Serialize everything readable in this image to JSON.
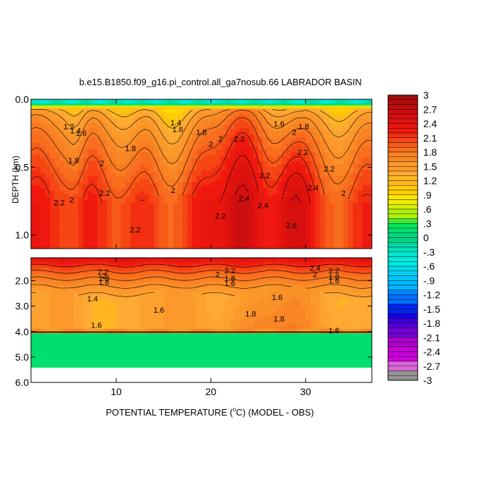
{
  "chart_data": {
    "type": "heatmap",
    "title": "b.e15.B1850.f09_g16.pi_control.all_ga7nosub.66 LABRADOR BASIN",
    "xlabel_prefix": "POTENTIAL TEMPERATURE (",
    "xlabel_degree": "o",
    "xlabel_suffix": "C) (MODEL - OBS)",
    "ylabel": "DEPTH (km)",
    "xlim": [
      1,
      37
    ],
    "x_ticks": [
      10,
      20,
      30
    ],
    "x_tick_labels": [
      "10",
      "20",
      "30"
    ],
    "upper_panel": {
      "ylim": [
        0.0,
        1.1
      ],
      "y_ticks": [
        0.0,
        0.5,
        1.0
      ],
      "y_tick_labels": [
        "0.0",
        "0.5",
        "1.0"
      ]
    },
    "lower_panel": {
      "ylim": [
        1.1,
        6.0
      ],
      "y_ticks": [
        2.0,
        3.0,
        4.0,
        5.0,
        6.0
      ],
      "y_tick_labels": [
        "2.0",
        "3.0",
        "4.0",
        "5.0",
        "6.0"
      ],
      "missing_below_depth": 5.4
    },
    "colorbar": {
      "min": -3.0,
      "max": 3.0,
      "step": 0.1,
      "tick_labels": [
        "3",
        "2.7",
        "2.4",
        "2.1",
        "1.8",
        "1.5",
        "1.2",
        ".9",
        ".6",
        ".3",
        "0",
        "-.3",
        "-.6",
        "-.9",
        "-1.2",
        "-1.5",
        "-1.8",
        "-2.1",
        "-2.4",
        "-2.7",
        "-3"
      ]
    },
    "contour_labels": [
      {
        "text": "1.2",
        "x": 5.0,
        "d": 0.2
      },
      {
        "text": "1.4",
        "x": 5.7,
        "d": 0.23
      },
      {
        "text": "1.6",
        "x": 6.3,
        "d": 0.25
      },
      {
        "text": "1.8",
        "x": 5.5,
        "d": 0.45
      },
      {
        "text": "2",
        "x": 8.5,
        "d": 0.47
      },
      {
        "text": "2.2",
        "x": 4.0,
        "d": 0.76
      },
      {
        "text": "2",
        "x": 5.3,
        "d": 0.74
      },
      {
        "text": "2.2",
        "x": 8.8,
        "d": 0.69
      },
      {
        "text": "2.2",
        "x": 12.0,
        "d": 0.96
      },
      {
        "text": "1.8",
        "x": 11.5,
        "d": 0.36
      },
      {
        "text": "1.4",
        "x": 16.3,
        "d": 0.17
      },
      {
        "text": "1.6",
        "x": 16.5,
        "d": 0.22
      },
      {
        "text": "1.8",
        "x": 19.0,
        "d": 0.24
      },
      {
        "text": "2",
        "x": 20.0,
        "d": 0.33
      },
      {
        "text": "2",
        "x": 21.0,
        "d": 0.29
      },
      {
        "text": "2.2",
        "x": 23.0,
        "d": 0.29
      },
      {
        "text": "2",
        "x": 16.0,
        "d": 0.67
      },
      {
        "text": "2.2",
        "x": 21.0,
        "d": 0.86
      },
      {
        "text": "2.4",
        "x": 23.5,
        "d": 0.73
      },
      {
        "text": "2.2",
        "x": 25.7,
        "d": 0.56
      },
      {
        "text": "2.4",
        "x": 25.5,
        "d": 0.78
      },
      {
        "text": "2.6",
        "x": 28.5,
        "d": 0.93
      },
      {
        "text": "1.6",
        "x": 27.2,
        "d": 0.18
      },
      {
        "text": "1.8",
        "x": 29.8,
        "d": 0.2
      },
      {
        "text": "2",
        "x": 28.8,
        "d": 0.24
      },
      {
        "text": "2.2",
        "x": 29.7,
        "d": 0.39
      },
      {
        "text": "2.2",
        "x": 32.5,
        "d": 0.51
      },
      {
        "text": "2.4",
        "x": 30.8,
        "d": 0.65
      },
      {
        "text": "2",
        "x": 34.0,
        "d": 0.69
      },
      {
        "text": "2.2",
        "x": 8.6,
        "d": 1.65
      },
      {
        "text": "2",
        "x": 8.7,
        "d": 1.8
      },
      {
        "text": "1.8",
        "x": 8.7,
        "d": 1.9
      },
      {
        "text": "1.6",
        "x": 8.7,
        "d": 2.05
      },
      {
        "text": "1.4",
        "x": 7.5,
        "d": 2.7
      },
      {
        "text": "1.6",
        "x": 14.5,
        "d": 3.15
      },
      {
        "text": "2.2",
        "x": 22.0,
        "d": 1.6
      },
      {
        "text": "2",
        "x": 20.7,
        "d": 1.75
      },
      {
        "text": "1.8",
        "x": 22.0,
        "d": 1.9
      },
      {
        "text": "1.6",
        "x": 22.0,
        "d": 2.1
      },
      {
        "text": "1.6",
        "x": 27.0,
        "d": 2.65
      },
      {
        "text": "1.8",
        "x": 24.2,
        "d": 3.3
      },
      {
        "text": "1.8",
        "x": 27.2,
        "d": 3.5
      },
      {
        "text": "2.4",
        "x": 31.0,
        "d": 1.5
      },
      {
        "text": "2.2",
        "x": 33.0,
        "d": 1.6
      },
      {
        "text": "2",
        "x": 31.0,
        "d": 1.75
      },
      {
        "text": "1.8",
        "x": 33.0,
        "d": 1.85
      },
      {
        "text": "1.6",
        "x": 33.0,
        "d": 2.0
      },
      {
        "text": "1.6",
        "x": 7.9,
        "d": 3.75
      },
      {
        "text": "1.6",
        "x": 33.0,
        "d": 3.95
      }
    ]
  }
}
